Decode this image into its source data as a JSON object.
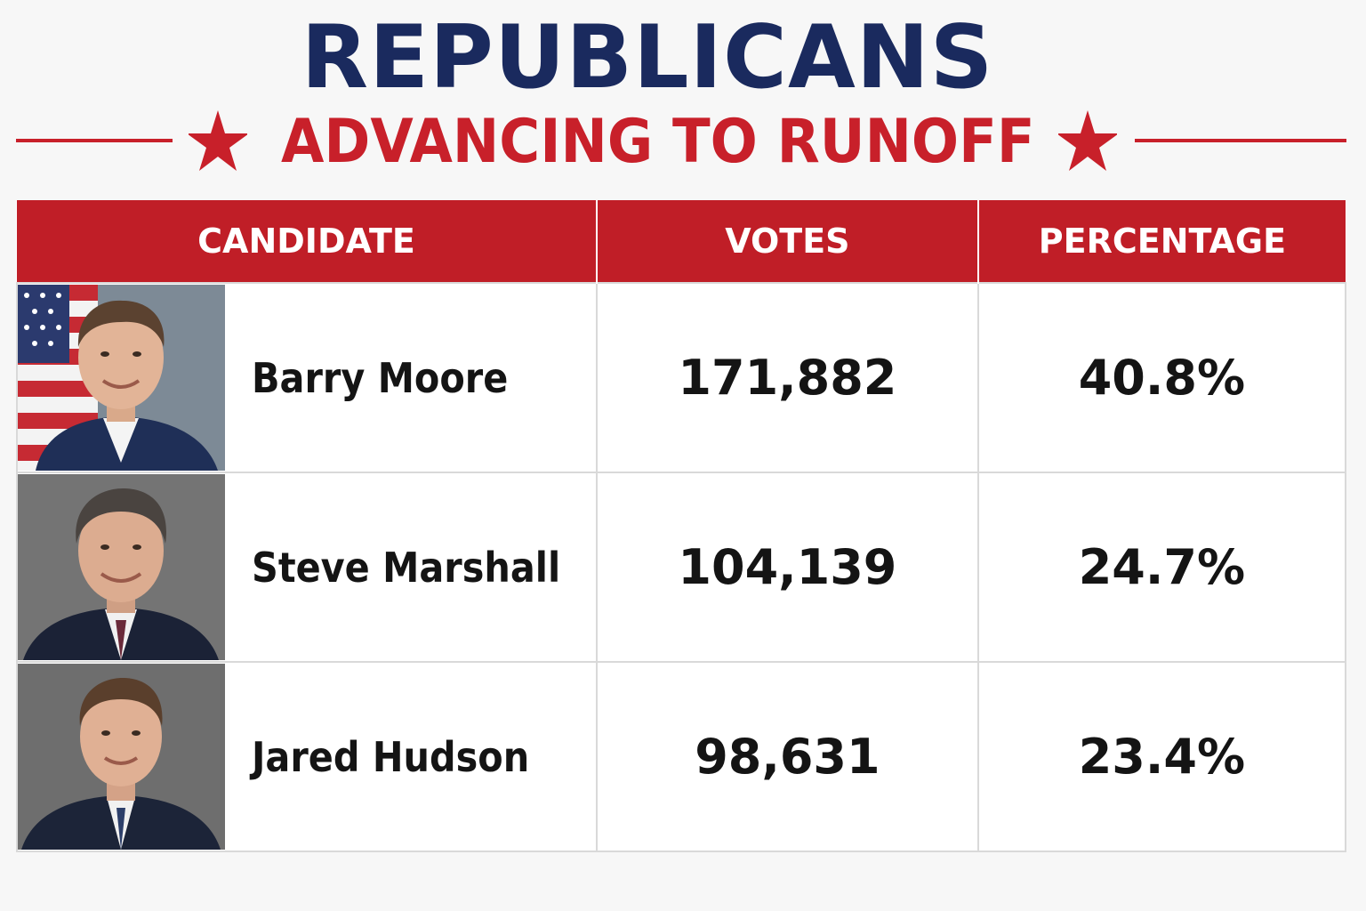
{
  "header": {
    "title": "REPUBLICANS",
    "subtitle": "ADVANCING TO RUNOFF"
  },
  "colors": {
    "navy": "#1a2a5e",
    "red": "#c01e27",
    "text": "#141414"
  },
  "table": {
    "columns": [
      "CANDIDATE",
      "VOTES",
      "PERCENTAGE"
    ],
    "rows": [
      {
        "name": "Barry Moore",
        "votes": "171,882",
        "percentage": "40.8%",
        "photo": "portrait-with-flag"
      },
      {
        "name": "Steve Marshall",
        "votes": "104,139",
        "percentage": "24.7%",
        "photo": "portrait"
      },
      {
        "name": "Jared Hudson",
        "votes": "98,631",
        "percentage": "23.4%",
        "photo": "portrait"
      }
    ]
  }
}
